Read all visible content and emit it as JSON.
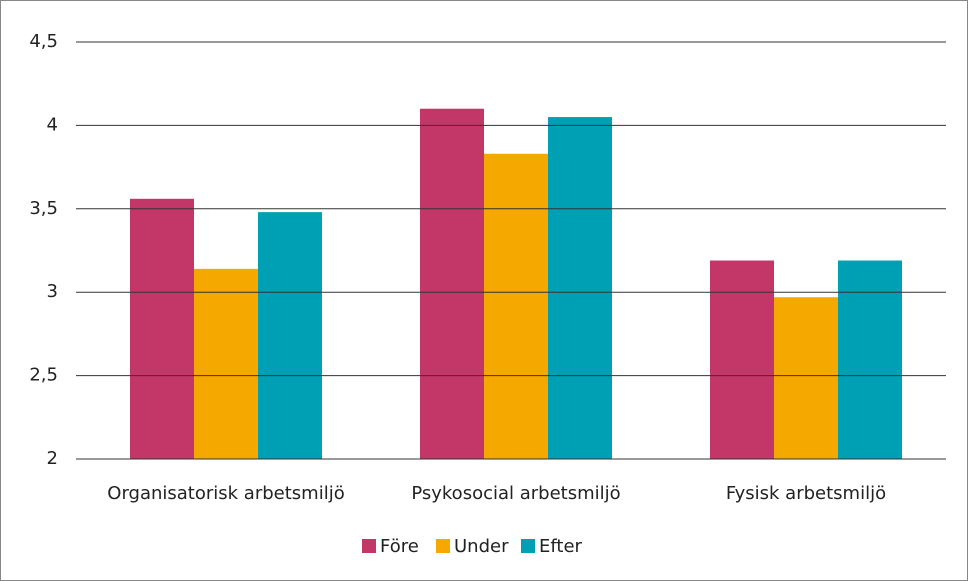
{
  "chart_data": {
    "type": "bar",
    "categories": [
      "Organisatorisk arbetsmiljö",
      "Psykosocial arbetsmiljö",
      "Fysisk arbetsmiljö"
    ],
    "series": [
      {
        "name": "Före",
        "color": "#c23668",
        "values": [
          3.56,
          4.1,
          3.19
        ]
      },
      {
        "name": "Under",
        "color": "#f5a800",
        "values": [
          3.14,
          3.83,
          2.97
        ]
      },
      {
        "name": "Efter",
        "color": "#00a0b4",
        "values": [
          3.48,
          4.05,
          3.19
        ]
      }
    ],
    "ylim": [
      2,
      4.5
    ],
    "yticks": [
      2,
      {
        "value": 2.5,
        "label": "2,5"
      },
      3,
      {
        "value": 3.5,
        "label": "3,5"
      },
      4,
      {
        "value": 4.5,
        "label": "4,5"
      }
    ],
    "grid": true,
    "legend": "bottom"
  }
}
